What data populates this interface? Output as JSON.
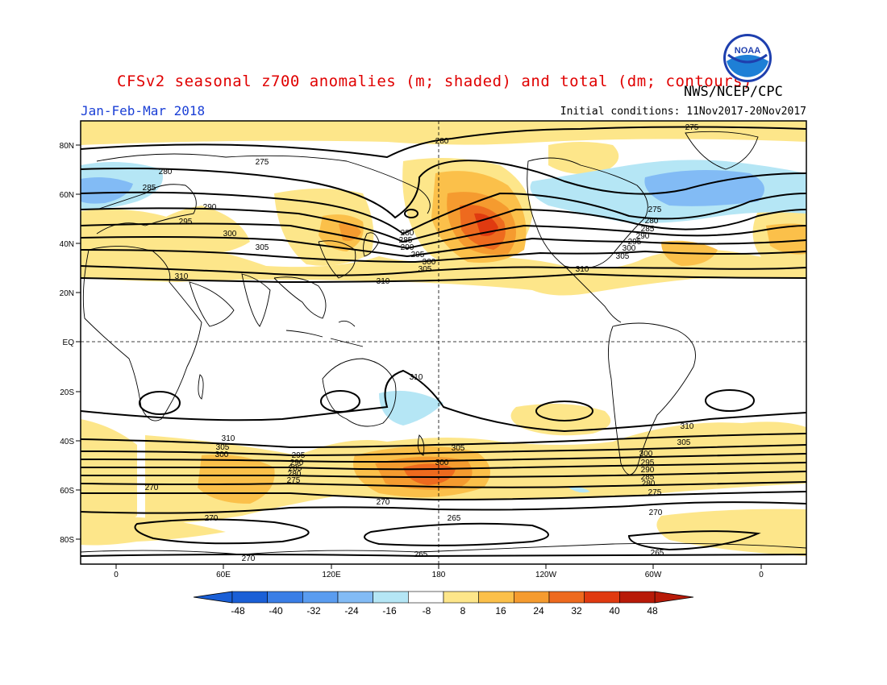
{
  "title": "CFSv2 seasonal z700 anomalies (m; shaded) and total (dm; contours)",
  "agency": "NWS/NCEP/CPC",
  "period": "Jan-Feb-Mar 2018",
  "initial_conditions": "Initial conditions: 11Nov2017-20Nov2017",
  "logo_text": "NOAA",
  "lat_labels": [
    "80N",
    "60N",
    "40N",
    "20N",
    "EQ",
    "20S",
    "40S",
    "60S",
    "80S"
  ],
  "lon_labels": [
    "0",
    "60E",
    "120E",
    "180",
    "120W",
    "60W",
    "0"
  ],
  "colorbar": {
    "ticks": [
      "-48",
      "-40",
      "-32",
      "-24",
      "-16",
      "-8",
      "8",
      "16",
      "24",
      "32",
      "40",
      "48"
    ],
    "colors": [
      "#1a5fd6",
      "#3a7ee6",
      "#5a9cf0",
      "#82bbf5",
      "#b5e6f5",
      "#ffffff",
      "#fde68a",
      "#fbc04a",
      "#f59b2f",
      "#ee6a1e",
      "#e03a10",
      "#b81a08"
    ]
  },
  "contour_labels": {
    "n265": "265",
    "n270": "270",
    "n275": "275",
    "n280": "280",
    "n285": "285",
    "n290": "290",
    "n295": "295",
    "n300": "300",
    "n305": "305",
    "n310": "310"
  }
}
